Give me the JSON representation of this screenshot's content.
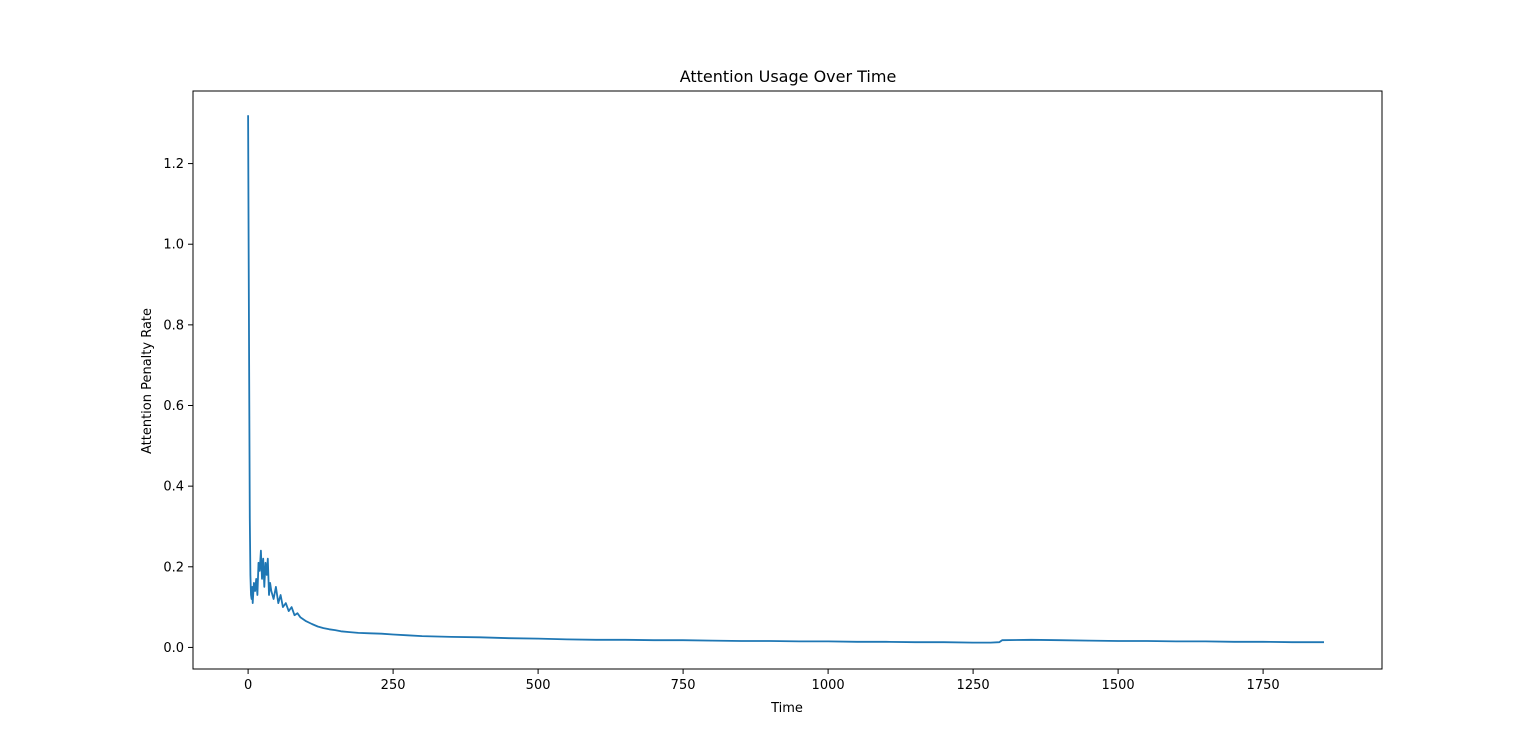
{
  "chart_data": {
    "type": "line",
    "title": "Attention Usage Over Time",
    "xlabel": "Time",
    "ylabel": "Attention Penalty Rate",
    "xlim": [
      -95,
      1955
    ],
    "ylim": [
      -0.0535,
      1.38
    ],
    "xticks": [
      0,
      250,
      500,
      750,
      1000,
      1250,
      1500,
      1750
    ],
    "xtick_labels": [
      "0",
      "250",
      "500",
      "750",
      "1000",
      "1250",
      "1500",
      "1750"
    ],
    "yticks": [
      0.0,
      0.2,
      0.4,
      0.6,
      0.8,
      1.0,
      1.2
    ],
    "ytick_labels": [
      "0.0",
      "0.2",
      "0.4",
      "0.6",
      "0.8",
      "1.0",
      "1.2"
    ],
    "grid": false,
    "legend": "none",
    "series": [
      {
        "color": "#1f77b4",
        "x": [
          0,
          1,
          2,
          3,
          4,
          5,
          6,
          7,
          8,
          10,
          12,
          14,
          16,
          18,
          20,
          22,
          24,
          26,
          28,
          30,
          32,
          34,
          36,
          38,
          40,
          44,
          48,
          52,
          56,
          60,
          65,
          70,
          75,
          80,
          85,
          90,
          95,
          100,
          110,
          120,
          130,
          140,
          150,
          160,
          175,
          190,
          210,
          230,
          250,
          275,
          300,
          350,
          400,
          450,
          500,
          550,
          600,
          650,
          700,
          750,
          800,
          850,
          900,
          950,
          1000,
          1050,
          1100,
          1150,
          1200,
          1250,
          1280,
          1295,
          1300,
          1350,
          1400,
          1450,
          1500,
          1550,
          1600,
          1650,
          1700,
          1750,
          1800,
          1855
        ],
        "y": [
          1.32,
          0.95,
          0.6,
          0.32,
          0.18,
          0.13,
          0.12,
          0.15,
          0.11,
          0.16,
          0.14,
          0.17,
          0.13,
          0.21,
          0.19,
          0.24,
          0.17,
          0.22,
          0.15,
          0.21,
          0.18,
          0.22,
          0.13,
          0.16,
          0.14,
          0.12,
          0.15,
          0.11,
          0.13,
          0.1,
          0.11,
          0.09,
          0.1,
          0.08,
          0.085,
          0.075,
          0.07,
          0.065,
          0.058,
          0.052,
          0.048,
          0.045,
          0.043,
          0.04,
          0.038,
          0.036,
          0.035,
          0.034,
          0.032,
          0.03,
          0.028,
          0.026,
          0.025,
          0.023,
          0.022,
          0.02,
          0.019,
          0.019,
          0.018,
          0.018,
          0.017,
          0.016,
          0.016,
          0.015,
          0.015,
          0.014,
          0.014,
          0.013,
          0.013,
          0.012,
          0.012,
          0.013,
          0.018,
          0.019,
          0.018,
          0.017,
          0.016,
          0.016,
          0.015,
          0.015,
          0.014,
          0.014,
          0.013,
          0.013
        ]
      }
    ]
  }
}
